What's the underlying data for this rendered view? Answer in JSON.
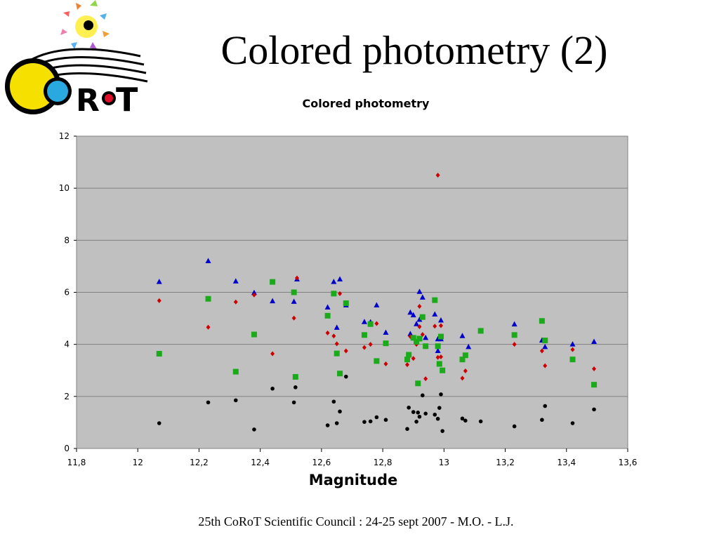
{
  "slide": {
    "title": "Colored photometry (2)",
    "footer": "25th CoRoT Scientific Council : 24-25 sept 2007 - M.O. - L.J."
  },
  "logo": {
    "name": "corot-logo",
    "text": "CoRoT"
  },
  "colors": {
    "plot_bg": "#c0c0c0",
    "gridline": "#808080",
    "blue": "#0000cc",
    "red": "#cc0000",
    "green": "#1aaa1a",
    "black": "#000000"
  },
  "chart_data": {
    "type": "scatter",
    "title": "Colored photometry",
    "xlabel": "Magnitude",
    "ylabel": "",
    "xlim": [
      11.8,
      13.6
    ],
    "ylim": [
      0,
      12
    ],
    "xticks": [
      "11,8",
      "12",
      "12,2",
      "12,4",
      "12,6",
      "12,8",
      "13",
      "13,2",
      "13,4",
      "13,6"
    ],
    "yticks": [
      "0",
      "2",
      "4",
      "6",
      "8",
      "10",
      "12"
    ],
    "grid": "horizontal",
    "legend": "none",
    "series": [
      {
        "marker": "triangle",
        "color": "#0000cc",
        "points": [
          [
            12.07,
            6.4
          ],
          [
            12.23,
            7.2
          ],
          [
            12.32,
            6.42
          ],
          [
            12.38,
            5.98
          ],
          [
            12.44,
            5.66
          ],
          [
            12.51,
            5.64
          ],
          [
            12.52,
            6.5
          ],
          [
            12.62,
            5.42
          ],
          [
            12.64,
            6.4
          ],
          [
            12.65,
            4.64
          ],
          [
            12.66,
            6.5
          ],
          [
            12.68,
            5.5
          ],
          [
            12.74,
            4.86
          ],
          [
            12.76,
            4.85
          ],
          [
            12.78,
            5.5
          ],
          [
            12.81,
            4.45
          ],
          [
            12.89,
            4.4
          ],
          [
            12.89,
            5.22
          ],
          [
            12.9,
            5.12
          ],
          [
            12.91,
            4.78
          ],
          [
            12.92,
            6.02
          ],
          [
            12.92,
            4.95
          ],
          [
            12.93,
            5.8
          ],
          [
            12.94,
            4.25
          ],
          [
            12.97,
            5.15
          ],
          [
            12.98,
            4.2
          ],
          [
            12.99,
            4.2
          ],
          [
            12.98,
            3.75
          ],
          [
            12.99,
            4.92
          ],
          [
            13.06,
            4.32
          ],
          [
            13.08,
            3.9
          ],
          [
            13.12,
            4.5
          ],
          [
            13.23,
            4.77
          ],
          [
            13.32,
            4.15
          ],
          [
            13.33,
            3.9
          ],
          [
            13.42,
            4.0
          ],
          [
            13.49,
            4.1
          ]
        ]
      },
      {
        "marker": "diamond",
        "color": "#cc0000",
        "points": [
          [
            12.07,
            5.68
          ],
          [
            12.23,
            4.66
          ],
          [
            12.32,
            5.63
          ],
          [
            12.38,
            5.9
          ],
          [
            12.44,
            3.64
          ],
          [
            12.51,
            5.01
          ],
          [
            12.52,
            6.55
          ],
          [
            12.62,
            4.44
          ],
          [
            12.64,
            4.32
          ],
          [
            12.65,
            4.02
          ],
          [
            12.66,
            5.95
          ],
          [
            12.68,
            3.75
          ],
          [
            12.74,
            3.88
          ],
          [
            12.76,
            4.0
          ],
          [
            12.78,
            4.8
          ],
          [
            12.81,
            3.25
          ],
          [
            12.88,
            3.22
          ],
          [
            12.89,
            4.3
          ],
          [
            12.9,
            3.46
          ],
          [
            12.91,
            4.0
          ],
          [
            12.92,
            5.46
          ],
          [
            12.92,
            4.68
          ],
          [
            12.93,
            4.38
          ],
          [
            12.94,
            2.68
          ],
          [
            12.97,
            4.7
          ],
          [
            12.98,
            3.5
          ],
          [
            12.99,
            3.52
          ],
          [
            12.98,
            10.5
          ],
          [
            12.99,
            4.72
          ],
          [
            13.06,
            2.7
          ],
          [
            13.07,
            2.98
          ],
          [
            13.12,
            4.52
          ],
          [
            13.23,
            4.0
          ],
          [
            13.32,
            3.75
          ],
          [
            13.33,
            3.18
          ],
          [
            13.42,
            3.8
          ],
          [
            13.49,
            3.06
          ]
        ]
      },
      {
        "marker": "square",
        "color": "#1aaa1a",
        "points": [
          [
            12.07,
            3.64
          ],
          [
            12.23,
            5.75
          ],
          [
            12.32,
            2.95
          ],
          [
            12.38,
            4.38
          ],
          [
            12.44,
            6.4
          ],
          [
            12.51,
            6.0
          ],
          [
            12.515,
            2.75
          ],
          [
            12.62,
            5.1
          ],
          [
            12.64,
            5.95
          ],
          [
            12.65,
            3.65
          ],
          [
            12.66,
            2.88
          ],
          [
            12.68,
            5.58
          ],
          [
            12.74,
            4.36
          ],
          [
            12.76,
            4.78
          ],
          [
            12.78,
            3.36
          ],
          [
            12.81,
            4.04
          ],
          [
            12.88,
            3.42
          ],
          [
            12.885,
            3.6
          ],
          [
            12.9,
            4.25
          ],
          [
            12.91,
            4.1
          ],
          [
            12.915,
            2.5
          ],
          [
            12.92,
            4.22
          ],
          [
            12.93,
            5.05
          ],
          [
            12.94,
            3.93
          ],
          [
            12.97,
            5.7
          ],
          [
            12.98,
            3.93
          ],
          [
            12.985,
            3.25
          ],
          [
            12.99,
            4.3
          ],
          [
            12.995,
            3.0
          ],
          [
            13.06,
            3.42
          ],
          [
            13.07,
            3.58
          ],
          [
            13.12,
            4.52
          ],
          [
            13.23,
            4.36
          ],
          [
            13.32,
            4.9
          ],
          [
            13.33,
            4.15
          ],
          [
            13.42,
            3.42
          ],
          [
            13.49,
            2.45
          ]
        ]
      },
      {
        "marker": "circle",
        "color": "#000000",
        "points": [
          [
            12.07,
            0.97
          ],
          [
            12.23,
            1.77
          ],
          [
            12.32,
            1.85
          ],
          [
            12.38,
            0.73
          ],
          [
            12.44,
            2.3
          ],
          [
            12.51,
            1.77
          ],
          [
            12.515,
            2.35
          ],
          [
            12.62,
            0.89
          ],
          [
            12.64,
            1.8
          ],
          [
            12.65,
            0.97
          ],
          [
            12.66,
            1.42
          ],
          [
            12.68,
            2.76
          ],
          [
            12.74,
            1.02
          ],
          [
            12.76,
            1.04
          ],
          [
            12.78,
            1.2
          ],
          [
            12.81,
            1.1
          ],
          [
            12.88,
            0.75
          ],
          [
            12.885,
            1.57
          ],
          [
            12.9,
            1.4
          ],
          [
            12.91,
            1.03
          ],
          [
            12.915,
            1.38
          ],
          [
            12.92,
            1.22
          ],
          [
            12.93,
            2.04
          ],
          [
            12.94,
            1.34
          ],
          [
            12.97,
            1.3
          ],
          [
            12.98,
            1.14
          ],
          [
            12.985,
            1.56
          ],
          [
            12.99,
            2.08
          ],
          [
            12.995,
            0.67
          ],
          [
            13.06,
            1.15
          ],
          [
            13.07,
            1.07
          ],
          [
            13.12,
            1.04
          ],
          [
            13.23,
            0.85
          ],
          [
            13.32,
            1.1
          ],
          [
            13.33,
            1.63
          ],
          [
            13.42,
            0.97
          ],
          [
            13.49,
            1.5
          ]
        ]
      }
    ]
  }
}
